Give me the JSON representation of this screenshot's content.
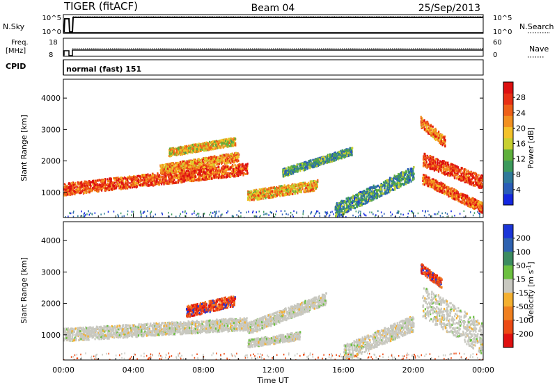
{
  "header": {
    "station": "TIGER (fitACF)",
    "beam": "Beam 04",
    "date": "25/Sep/2013"
  },
  "top_panels": {
    "nsky_label": "N.Sky",
    "nsky_ticks": [
      "10^5",
      "10^0"
    ],
    "nsearch_label": "N.Search",
    "nsearch_ticks": [
      "10^5",
      "10^0"
    ],
    "freq_label": "Freq.",
    "freq_unit": "[MHz]",
    "freq_ticks": [
      "18",
      "8"
    ],
    "nave_label": "Nave",
    "nave_ticks": [
      "60",
      "0"
    ],
    "cpid_label": "CPID",
    "cpid_text": "normal (fast) 151"
  },
  "chart_data": [
    {
      "type": "heatmap",
      "name": "power",
      "title": "",
      "xlabel": "",
      "ylabel": "Slant Range [km]",
      "xlim": [
        0,
        24
      ],
      "ylim": [
        200,
        4600
      ],
      "yticks": [
        1000,
        2000,
        3000,
        4000
      ],
      "colorbar": {
        "label": "Power [dB]",
        "ticks": [
          "4",
          "8",
          "12",
          "16",
          "20",
          "24",
          "28"
        ],
        "range": [
          0,
          32
        ],
        "colors": [
          "#1427e0",
          "#2a5db8",
          "#2f7a9a",
          "#3c9a5c",
          "#5fb03c",
          "#c8d030",
          "#f4c22a",
          "#f29020",
          "#ee6018",
          "#e83014",
          "#dd1010"
        ]
      },
      "echo_regions": [
        {
          "t": [
            0.0,
            10.5
          ],
          "r_start": [
            1050,
            1700
          ],
          "thickness": 380,
          "level": 0.82
        },
        {
          "t": [
            5.5,
            10.0
          ],
          "r_start": [
            1700,
            2100
          ],
          "thickness": 300,
          "level": 0.7
        },
        {
          "t": [
            6.0,
            9.8
          ],
          "r_start": [
            2250,
            2600
          ],
          "thickness": 250,
          "level": 0.58
        },
        {
          "t": [
            10.5,
            14.5
          ],
          "r_start": [
            850,
            1200
          ],
          "thickness": 320,
          "level": 0.62
        },
        {
          "t": [
            12.5,
            16.5
          ],
          "r_start": [
            1600,
            2300
          ],
          "thickness": 250,
          "level": 0.32
        },
        {
          "t": [
            15.5,
            20.0
          ],
          "r_start": [
            350,
            1550
          ],
          "thickness": 450,
          "level": 0.3
        },
        {
          "t": [
            20.5,
            24.0
          ],
          "r_start": [
            2000,
            1250
          ],
          "thickness": 420,
          "level": 0.85
        },
        {
          "t": [
            20.5,
            24.0
          ],
          "r_start": [
            1400,
            450
          ],
          "thickness": 320,
          "level": 0.8
        },
        {
          "t": [
            20.4,
            21.8
          ],
          "r_start": [
            3200,
            2550
          ],
          "thickness": 350,
          "level": 0.75
        }
      ]
    },
    {
      "type": "heatmap",
      "name": "velocity",
      "title": "",
      "xlabel": "Time UT",
      "ylabel": "Slant Range [km]",
      "xlim": [
        0,
        24
      ],
      "ylim": [
        200,
        4600
      ],
      "x_tick_labels": [
        "00:00",
        "04:00",
        "08:00",
        "12:00",
        "16:00",
        "20:00",
        "00:00"
      ],
      "x_tick_values": [
        0,
        4,
        8,
        12,
        16,
        20,
        24
      ],
      "yticks": [
        1000,
        2000,
        3000,
        4000
      ],
      "colorbar": {
        "label": "Velocity [m s^-1]",
        "ticks": [
          "200",
          "100",
          "50",
          "15",
          "-15",
          "-50",
          "-100",
          "-200"
        ],
        "colors": [
          "#1a35d8",
          "#2e62b0",
          "#3c8c60",
          "#6cc040",
          "#c8c8c0",
          "#f4b030",
          "#f08020",
          "#ec4a14",
          "#e01010"
        ]
      },
      "echo_regions": [
        {
          "t": [
            0.0,
            10.5
          ],
          "r_start": [
            950,
            1300
          ],
          "thickness": 400,
          "class": "ground"
        },
        {
          "t": [
            10.5,
            15.0
          ],
          "r_start": [
            1150,
            2100
          ],
          "thickness": 380,
          "class": "ground"
        },
        {
          "t": [
            10.5,
            13.5
          ],
          "r_start": [
            700,
            950
          ],
          "thickness": 250,
          "class": "ground"
        },
        {
          "t": [
            16.0,
            20.0
          ],
          "r_start": [
            350,
            1300
          ],
          "thickness": 500,
          "class": "ground"
        },
        {
          "t": [
            20.5,
            24.0
          ],
          "r_start": [
            1900,
            700
          ],
          "thickness": 1000,
          "class": "ground"
        },
        {
          "t": [
            7.0,
            9.8
          ],
          "r_start": [
            1700,
            2050
          ],
          "thickness": 350,
          "class": "negative"
        },
        {
          "t": [
            20.4,
            21.6
          ],
          "r_start": [
            3100,
            2600
          ],
          "thickness": 300,
          "class": "negative"
        }
      ]
    }
  ]
}
